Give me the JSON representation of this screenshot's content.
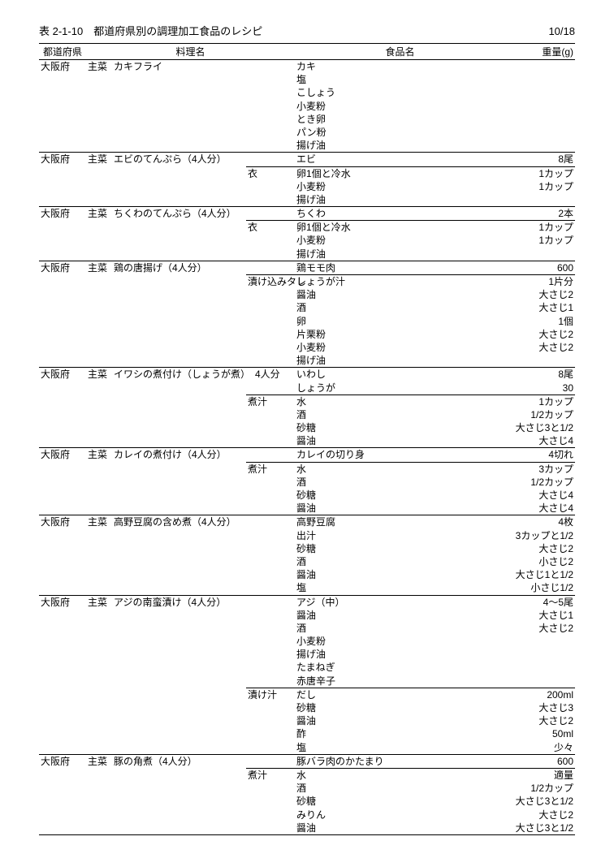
{
  "title": "表 2-1-10　都道府県別の調理加工食品のレシピ",
  "page_num": "10/18",
  "columns": {
    "pref": "都道府県",
    "dish": "料理名",
    "food": "食品名",
    "weight": "重量(g)"
  },
  "groups": [
    {
      "pref": "大阪府",
      "cat": "主菜",
      "dish": "カキフライ",
      "subs": [
        {
          "sub": "",
          "items": [
            {
              "food": "カキ",
              "wt": ""
            },
            {
              "food": "塩",
              "wt": ""
            },
            {
              "food": "こしょう",
              "wt": ""
            },
            {
              "food": "小麦粉",
              "wt": ""
            },
            {
              "food": "とき卵",
              "wt": ""
            },
            {
              "food": "パン粉",
              "wt": ""
            },
            {
              "food": "揚げ油",
              "wt": ""
            }
          ]
        }
      ]
    },
    {
      "pref": "大阪府",
      "cat": "主菜",
      "dish": "エビのてんぷら（4人分）",
      "subs": [
        {
          "sub": "",
          "items": [
            {
              "food": "エビ",
              "wt": "8尾"
            }
          ]
        },
        {
          "sub": "衣",
          "items": [
            {
              "food": "卵1個と冷水",
              "wt": "1カップ"
            },
            {
              "food": "小麦粉",
              "wt": "1カップ"
            },
            {
              "food": "揚げ油",
              "wt": ""
            }
          ]
        }
      ]
    },
    {
      "pref": "大阪府",
      "cat": "主菜",
      "dish": "ちくわのてんぷら（4人分）",
      "subs": [
        {
          "sub": "",
          "items": [
            {
              "food": "ちくわ",
              "wt": "2本"
            }
          ]
        },
        {
          "sub": "衣",
          "items": [
            {
              "food": "卵1個と冷水",
              "wt": "1カップ"
            },
            {
              "food": "小麦粉",
              "wt": "1カップ"
            },
            {
              "food": "揚げ油",
              "wt": ""
            }
          ]
        }
      ]
    },
    {
      "pref": "大阪府",
      "cat": "主菜",
      "dish": "鶏の唐揚げ（4人分）",
      "subs": [
        {
          "sub": "",
          "items": [
            {
              "food": "鶏モモ肉",
              "wt": "600"
            }
          ]
        },
        {
          "sub": "漬け込みタレ",
          "items": [
            {
              "food": "しょうが汁",
              "wt": "1片分"
            },
            {
              "food": "醤油",
              "wt": "大さじ2"
            },
            {
              "food": "酒",
              "wt": "大さじ1"
            },
            {
              "food": "卵",
              "wt": "1個"
            },
            {
              "food": "片栗粉",
              "wt": "大さじ2"
            },
            {
              "food": "小麦粉",
              "wt": "大さじ2"
            },
            {
              "food": "揚げ油",
              "wt": ""
            }
          ]
        }
      ]
    },
    {
      "pref": "大阪府",
      "cat": "主菜",
      "dish": "イワシの煮付け（しょうが煮）　4人分",
      "subs": [
        {
          "sub": "",
          "items": [
            {
              "food": "いわし",
              "wt": "8尾"
            },
            {
              "food": "しょうが",
              "wt": "30"
            }
          ]
        },
        {
          "sub": "煮汁",
          "items": [
            {
              "food": "水",
              "wt": "1カップ"
            },
            {
              "food": "酒",
              "wt": "1/2カップ"
            },
            {
              "food": "砂糖",
              "wt": "大さじ3と1/2"
            },
            {
              "food": "醤油",
              "wt": "大さじ4"
            }
          ]
        }
      ]
    },
    {
      "pref": "大阪府",
      "cat": "主菜",
      "dish": "カレイの煮付け（4人分）",
      "subs": [
        {
          "sub": "",
          "items": [
            {
              "food": "カレイの切り身",
              "wt": "4切れ"
            }
          ]
        },
        {
          "sub": "煮汁",
          "items": [
            {
              "food": "水",
              "wt": "3カップ"
            },
            {
              "food": "酒",
              "wt": "1/2カップ"
            },
            {
              "food": "砂糖",
              "wt": "大さじ4"
            },
            {
              "food": "醤油",
              "wt": "大さじ4"
            }
          ]
        }
      ]
    },
    {
      "pref": "大阪府",
      "cat": "主菜",
      "dish": "高野豆腐の含め煮（4人分）",
      "subs": [
        {
          "sub": "",
          "items": [
            {
              "food": "高野豆腐",
              "wt": "4枚"
            },
            {
              "food": "出汁",
              "wt": "3カップと1/2"
            },
            {
              "food": "砂糖",
              "wt": "大さじ2"
            },
            {
              "food": "酒",
              "wt": "小さじ2"
            },
            {
              "food": "醤油",
              "wt": "大さじ1と1/2"
            },
            {
              "food": "塩",
              "wt": "小さじ1/2"
            }
          ]
        }
      ]
    },
    {
      "pref": "大阪府",
      "cat": "主菜",
      "dish": "アジの南蛮漬け（4人分）",
      "subs": [
        {
          "sub": "",
          "items": [
            {
              "food": "アジ（中）",
              "wt": "4～5尾"
            },
            {
              "food": "醤油",
              "wt": "大さじ1"
            },
            {
              "food": "酒",
              "wt": "大さじ2"
            },
            {
              "food": "小麦粉",
              "wt": ""
            },
            {
              "food": "揚げ油",
              "wt": ""
            },
            {
              "food": "たまねぎ",
              "wt": ""
            },
            {
              "food": "赤唐辛子",
              "wt": ""
            }
          ]
        },
        {
          "sub": "漬け汁",
          "items": [
            {
              "food": "だし",
              "wt": "200ml"
            },
            {
              "food": "砂糖",
              "wt": "大さじ3"
            },
            {
              "food": "醤油",
              "wt": "大さじ2"
            },
            {
              "food": "酢",
              "wt": "50ml"
            },
            {
              "food": "塩",
              "wt": "少々"
            }
          ]
        }
      ]
    },
    {
      "pref": "大阪府",
      "cat": "主菜",
      "dish": "豚の角煮（4人分）",
      "subs": [
        {
          "sub": "",
          "items": [
            {
              "food": "豚バラ肉のかたまり",
              "wt": "600"
            }
          ]
        },
        {
          "sub": "煮汁",
          "items": [
            {
              "food": "水",
              "wt": "適量"
            },
            {
              "food": "酒",
              "wt": "1/2カップ"
            },
            {
              "food": "砂糖",
              "wt": "大さじ3と1/2"
            },
            {
              "food": "みりん",
              "wt": "大さじ2"
            },
            {
              "food": "醤油",
              "wt": "大さじ3と1/2"
            }
          ]
        }
      ]
    }
  ]
}
